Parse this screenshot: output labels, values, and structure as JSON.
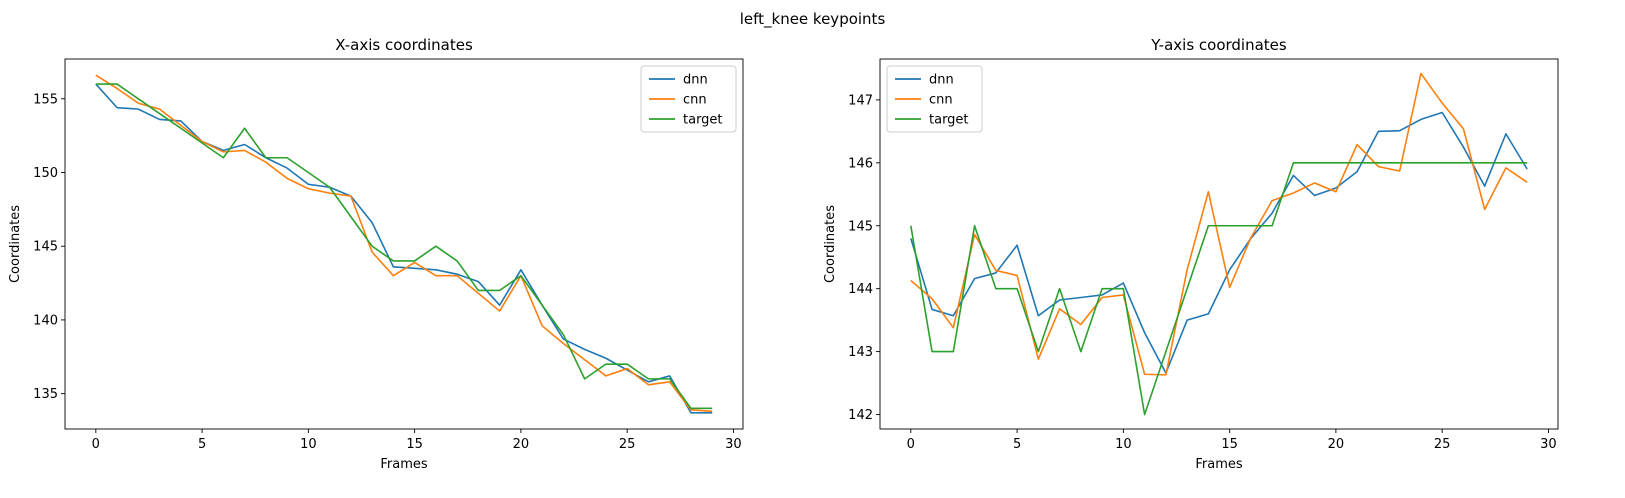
{
  "figure": {
    "suptitle": "left_knee keypoints"
  },
  "colors": {
    "dnn": "#1f77b4",
    "cnn": "#ff7f0e",
    "target": "#2ca02c"
  },
  "chart_data": [
    {
      "type": "line",
      "title": "X-axis coordinates",
      "xlabel": "Frames",
      "ylabel": "Coordinates",
      "xlim": [
        -1.45,
        30.45
      ],
      "ylim": [
        132.6,
        157.7
      ],
      "xticks": [
        0,
        5,
        10,
        15,
        20,
        25,
        30
      ],
      "yticks": [
        135,
        140,
        145,
        150,
        155
      ],
      "legend": "upper right",
      "x": [
        0,
        1,
        2,
        3,
        4,
        5,
        6,
        7,
        8,
        9,
        10,
        11,
        12,
        13,
        14,
        15,
        16,
        17,
        18,
        19,
        20,
        21,
        22,
        23,
        24,
        25,
        26,
        27,
        28,
        29
      ],
      "series": [
        {
          "name": "dnn",
          "values": [
            156.0,
            154.4,
            154.3,
            153.6,
            153.5,
            152.1,
            151.5,
            151.9,
            151.0,
            150.3,
            149.2,
            149.0,
            148.4,
            146.6,
            143.6,
            143.5,
            143.4,
            143.1,
            142.6,
            141.0,
            143.4,
            141.0,
            138.7,
            138.0,
            137.4,
            136.6,
            135.8,
            136.2,
            133.7,
            133.7
          ]
        },
        {
          "name": "cnn",
          "values": [
            156.6,
            155.7,
            154.7,
            154.3,
            153.2,
            152.1,
            151.4,
            151.5,
            150.7,
            149.6,
            148.9,
            148.6,
            148.4,
            144.6,
            143.0,
            143.9,
            143.0,
            143.0,
            141.8,
            140.6,
            143.0,
            139.6,
            138.4,
            137.3,
            136.2,
            136.7,
            135.6,
            135.8,
            133.9,
            133.8
          ]
        },
        {
          "name": "target",
          "values": [
            156.0,
            156.0,
            155.0,
            154.0,
            153.0,
            152.0,
            151.0,
            153.0,
            151.0,
            151.0,
            150.0,
            149.0,
            147.0,
            145.0,
            144.0,
            144.0,
            145.0,
            144.0,
            142.0,
            142.0,
            143.0,
            141.0,
            139.0,
            136.0,
            137.0,
            137.0,
            136.0,
            136.0,
            134.0,
            134.0
          ]
        }
      ]
    },
    {
      "type": "line",
      "title": "Y-axis coordinates",
      "xlabel": "Frames",
      "ylabel": "Coordinates",
      "xlim": [
        -1.45,
        30.45
      ],
      "ylim": [
        141.77,
        147.65
      ],
      "xticks": [
        0,
        5,
        10,
        15,
        20,
        25,
        30
      ],
      "yticks": [
        142,
        143,
        144,
        145,
        146,
        147
      ],
      "legend": "upper left",
      "x": [
        0,
        1,
        2,
        3,
        4,
        5,
        6,
        7,
        8,
        9,
        10,
        11,
        12,
        13,
        14,
        15,
        16,
        17,
        18,
        19,
        20,
        21,
        22,
        23,
        24,
        25,
        26,
        27,
        28,
        29
      ],
      "series": [
        {
          "name": "dnn",
          "values": [
            144.8,
            143.67,
            143.57,
            144.16,
            144.25,
            144.69,
            143.57,
            143.82,
            143.86,
            143.9,
            144.09,
            143.3,
            142.66,
            143.5,
            143.6,
            144.3,
            144.8,
            145.2,
            145.8,
            145.48,
            145.6,
            145.86,
            146.5,
            146.51,
            146.69,
            146.8,
            146.25,
            145.63,
            146.46,
            145.9
          ]
        },
        {
          "name": "cnn",
          "values": [
            144.13,
            143.84,
            143.38,
            144.86,
            144.29,
            144.21,
            142.88,
            143.68,
            143.43,
            143.86,
            143.9,
            142.64,
            142.63,
            144.3,
            145.54,
            144.02,
            144.81,
            145.4,
            145.52,
            145.68,
            145.54,
            146.29,
            145.94,
            145.87,
            147.42,
            146.95,
            146.54,
            145.26,
            145.92,
            145.69
          ]
        },
        {
          "name": "target",
          "values": [
            145.0,
            143.0,
            143.0,
            145.0,
            144.0,
            144.0,
            143.0,
            144.0,
            143.0,
            144.0,
            144.0,
            142.0,
            143.0,
            144.0,
            145.0,
            145.0,
            145.0,
            145.0,
            146.0,
            146.0,
            146.0,
            146.0,
            146.0,
            146.0,
            146.0,
            146.0,
            146.0,
            146.0,
            146.0,
            146.0
          ]
        }
      ]
    }
  ]
}
